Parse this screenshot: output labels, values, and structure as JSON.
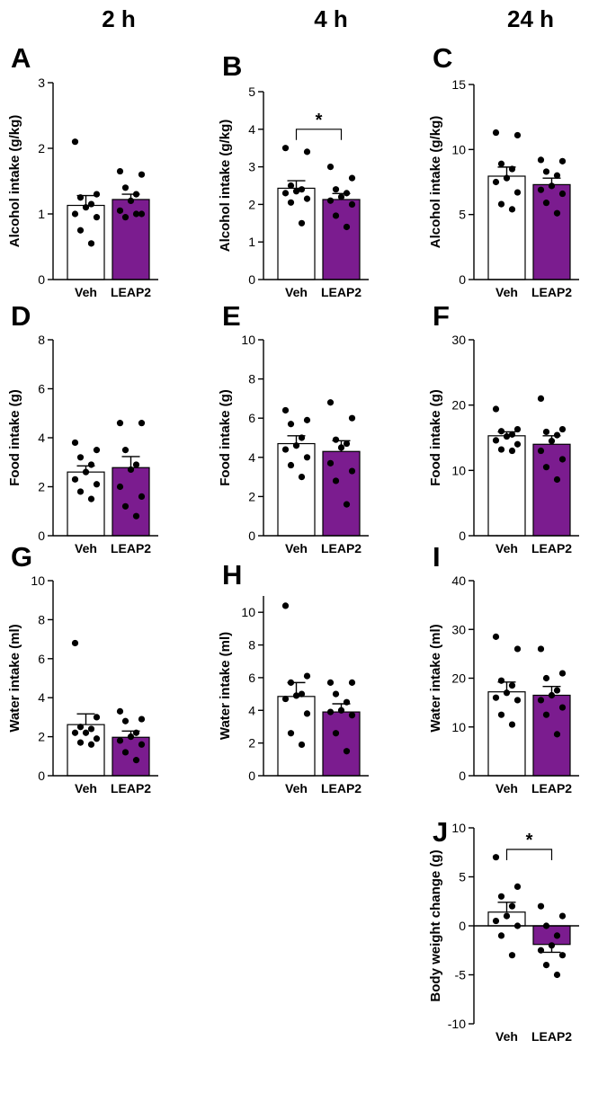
{
  "columns": [
    "2 h",
    "4 h",
    "24 h"
  ],
  "colors": {
    "veh": "#ffffff",
    "leap2": "#7b1c8f",
    "stroke": "#000000",
    "dot": "#000000"
  },
  "chart_data": [
    {
      "panel": "A",
      "type": "bar",
      "title": "",
      "xlabel": "",
      "ylabel": "Alcohol intake (g/kg)",
      "categories": [
        "Veh",
        "LEAP2"
      ],
      "ylim": [
        0,
        3
      ],
      "yticks": [
        0,
        1,
        2,
        3
      ],
      "means": [
        1.13,
        1.22
      ],
      "sem": [
        0.15,
        0.08
      ],
      "points": [
        [
          2.1,
          1.3,
          1.25,
          1.15,
          1.1,
          1.0,
          0.95,
          0.75,
          0.55
        ],
        [
          1.65,
          1.6,
          1.4,
          1.3,
          1.2,
          1.05,
          1.0,
          0.95,
          1.0
        ]
      ],
      "significance": null
    },
    {
      "panel": "B",
      "type": "bar",
      "title": "",
      "xlabel": "",
      "ylabel": "Alcohol intake (g/kg)",
      "categories": [
        "Veh",
        "LEAP2"
      ],
      "ylim": [
        0,
        5
      ],
      "yticks": [
        0,
        1,
        2,
        3,
        4,
        5
      ],
      "means": [
        2.43,
        2.13
      ],
      "sem": [
        0.2,
        0.16
      ],
      "points": [
        [
          3.5,
          3.4,
          2.5,
          2.4,
          2.35,
          2.3,
          2.15,
          2.05,
          1.5
        ],
        [
          3.0,
          2.7,
          2.4,
          2.3,
          2.2,
          2.1,
          2.0,
          1.7,
          1.4
        ]
      ],
      "significance": {
        "label": "*",
        "between": [
          0,
          1
        ],
        "y": 4.0
      }
    },
    {
      "panel": "C",
      "type": "bar",
      "title": "",
      "xlabel": "",
      "ylabel": "Alcohol intake (g/kg)",
      "categories": [
        "Veh",
        "LEAP2"
      ],
      "ylim": [
        0,
        15
      ],
      "yticks": [
        0,
        5,
        10,
        15
      ],
      "means": [
        7.95,
        7.3
      ],
      "sem": [
        0.7,
        0.5
      ],
      "points": [
        [
          11.3,
          11.1,
          8.9,
          8.5,
          7.8,
          7.5,
          6.7,
          5.8,
          5.4
        ],
        [
          9.2,
          9.1,
          8.3,
          8.0,
          7.2,
          6.9,
          6.6,
          5.9,
          5.1
        ]
      ],
      "significance": null
    },
    {
      "panel": "D",
      "type": "bar",
      "title": "",
      "xlabel": "",
      "ylabel": "Food intake (g)",
      "categories": [
        "Veh",
        "LEAP2"
      ],
      "ylim": [
        0,
        8
      ],
      "yticks": [
        0,
        2,
        4,
        6,
        8
      ],
      "means": [
        2.6,
        2.78
      ],
      "sem": [
        0.25,
        0.45
      ],
      "points": [
        [
          3.8,
          3.5,
          3.2,
          2.9,
          2.6,
          2.3,
          2.1,
          1.8,
          1.5
        ],
        [
          4.6,
          4.6,
          3.5,
          2.9,
          2.7,
          2.0,
          1.6,
          1.2,
          0.8
        ]
      ],
      "significance": null
    },
    {
      "panel": "E",
      "type": "bar",
      "title": "",
      "xlabel": "",
      "ylabel": "Food intake (g)",
      "categories": [
        "Veh",
        "LEAP2"
      ],
      "ylim": [
        0,
        10
      ],
      "yticks": [
        0,
        2,
        4,
        6,
        8,
        10
      ],
      "means": [
        4.7,
        4.3
      ],
      "sem": [
        0.4,
        0.55
      ],
      "points": [
        [
          6.4,
          5.9,
          5.7,
          5.0,
          4.6,
          4.4,
          4.0,
          3.6,
          3.0
        ],
        [
          6.8,
          6.0,
          4.9,
          4.7,
          4.5,
          3.7,
          3.3,
          2.8,
          1.6
        ]
      ],
      "significance": null
    },
    {
      "panel": "F",
      "type": "bar",
      "title": "",
      "xlabel": "",
      "ylabel": "Food intake (g)",
      "categories": [
        "Veh",
        "LEAP2"
      ],
      "ylim": [
        0,
        30
      ],
      "yticks": [
        0,
        10,
        20,
        30
      ],
      "means": [
        15.3,
        14.0
      ],
      "sem": [
        0.6,
        1.3
      ],
      "points": [
        [
          19.4,
          16.3,
          16.0,
          15.5,
          15.2,
          14.6,
          14.0,
          13.2,
          13.0
        ],
        [
          21.0,
          16.3,
          15.9,
          15.4,
          14.5,
          13.0,
          11.7,
          10.5,
          8.6
        ]
      ],
      "significance": null
    },
    {
      "panel": "G",
      "type": "bar",
      "title": "",
      "xlabel": "",
      "ylabel": "Water intake (ml)",
      "categories": [
        "Veh",
        "LEAP2"
      ],
      "ylim": [
        0,
        10
      ],
      "yticks": [
        0,
        2,
        4,
        6,
        8,
        10
      ],
      "means": [
        2.62,
        1.97
      ],
      "sem": [
        0.55,
        0.32
      ],
      "points": [
        [
          6.8,
          3.0,
          2.5,
          2.4,
          2.2,
          2.2,
          1.9,
          1.7,
          1.6
        ],
        [
          3.3,
          2.9,
          2.8,
          2.2,
          2.0,
          1.8,
          1.6,
          1.2,
          0.8
        ]
      ],
      "significance": null
    },
    {
      "panel": "H",
      "type": "bar",
      "title": "",
      "xlabel": "",
      "ylabel": "Water intake (ml)",
      "categories": [
        "Veh",
        "LEAP2"
      ],
      "ylim": [
        0,
        11
      ],
      "yticks": [
        0,
        2,
        4,
        6,
        8,
        10
      ],
      "means": [
        4.85,
        3.9
      ],
      "sem": [
        0.85,
        0.5
      ],
      "points": [
        [
          10.4,
          6.1,
          5.7,
          5.0,
          4.9,
          4.7,
          3.8,
          2.6,
          1.9
        ],
        [
          5.7,
          5.7,
          5.0,
          4.5,
          4.0,
          3.9,
          3.7,
          2.6,
          1.5
        ]
      ],
      "significance": null
    },
    {
      "panel": "I",
      "type": "bar",
      "title": "",
      "xlabel": "",
      "ylabel": "Water intake (ml)",
      "categories": [
        "Veh",
        "LEAP2"
      ],
      "ylim": [
        0,
        40
      ],
      "yticks": [
        0,
        10,
        20,
        30,
        40
      ],
      "means": [
        17.2,
        16.5
      ],
      "sem": [
        2.0,
        1.8
      ],
      "points": [
        [
          28.5,
          26.0,
          19.5,
          18.5,
          17.0,
          16.0,
          15.5,
          12.5,
          10.5
        ],
        [
          26.0,
          21.0,
          20.0,
          17.5,
          16.5,
          15.5,
          14.0,
          12.5,
          8.5
        ]
      ],
      "significance": null
    },
    {
      "panel": "J",
      "type": "bar",
      "title": "",
      "xlabel": "",
      "ylabel": "Body weight change (g)",
      "categories": [
        "Veh",
        "LEAP2"
      ],
      "ylim": [
        -10,
        10
      ],
      "yticks": [
        -10,
        -5,
        0,
        5,
        10
      ],
      "means": [
        1.4,
        -1.9
      ],
      "sem": [
        1.0,
        0.8
      ],
      "points": [
        [
          7.0,
          4.0,
          3.0,
          2.0,
          1.0,
          0.5,
          0.0,
          -1.0,
          -3.0
        ],
        [
          2.0,
          1.0,
          0.0,
          -1.0,
          -2.0,
          -2.5,
          -3.0,
          -4.0,
          -5.0
        ]
      ],
      "significance": {
        "label": "*",
        "between": [
          0,
          1
        ],
        "y": 7.8
      }
    }
  ]
}
